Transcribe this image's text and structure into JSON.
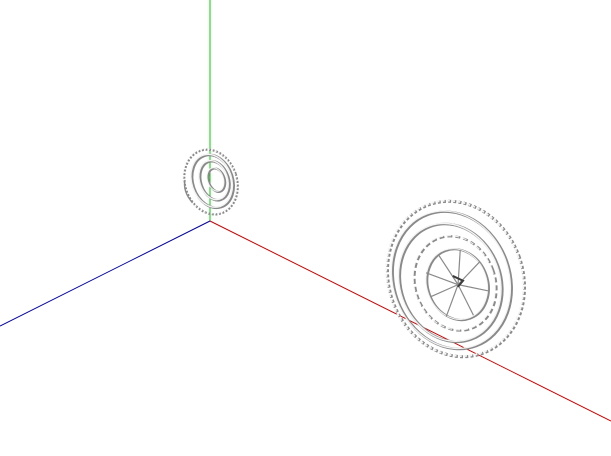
{
  "scene": {
    "axes": {
      "x_color": "#cc0000",
      "y_color": "#00cc00",
      "z_color": "#0000aa"
    },
    "objects": [
      {
        "name": "small-gear-assembly",
        "kind": "gear"
      },
      {
        "name": "large-gear-assembly",
        "kind": "gear"
      }
    ],
    "colors": {
      "background": "#ffffff",
      "mesh_fill": "#f4f4f4",
      "mesh_shade": "#8a8a8a",
      "mesh_edge": "#3c3c3c"
    }
  }
}
